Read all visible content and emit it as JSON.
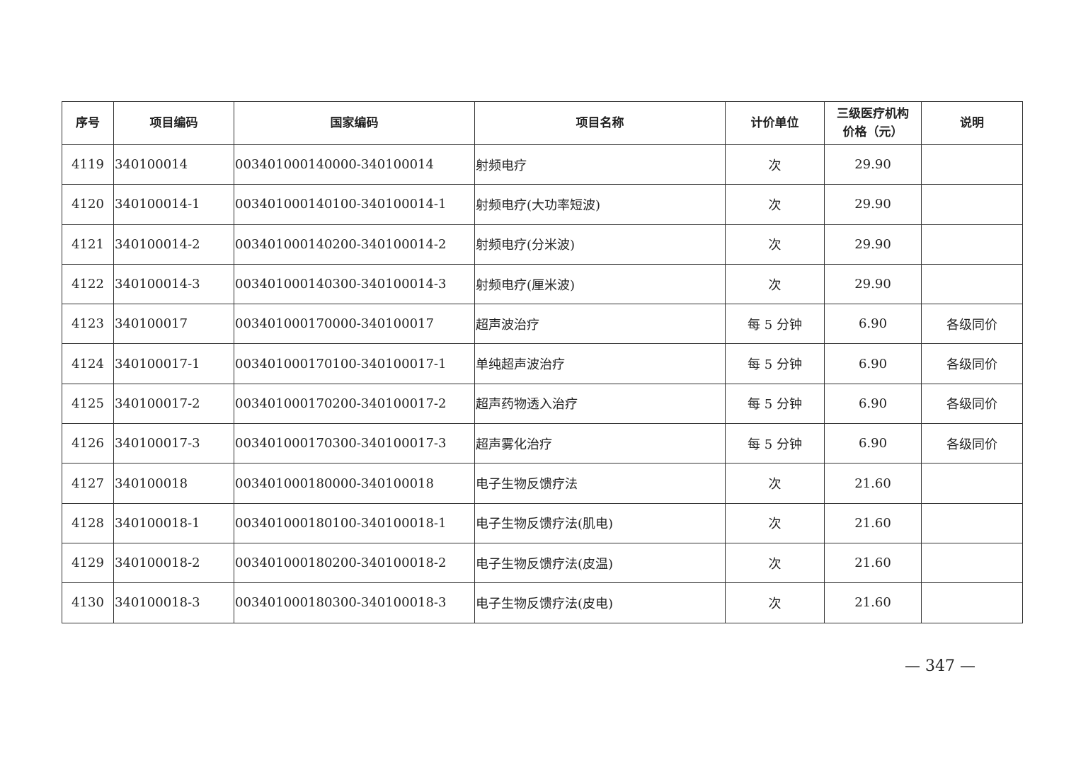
{
  "table": {
    "headers": [
      "序号",
      "项目编码",
      "国家编码",
      "项目名称",
      "计价单位",
      "三级医疗机构价格（元）",
      "说明"
    ],
    "header_price_line1": "三级医疗机构",
    "header_price_line2": "价格（元）",
    "rows": [
      [
        "4119",
        "340100014",
        "003401000140000-340100014",
        "射频电疗",
        "次",
        "29.90",
        ""
      ],
      [
        "4120",
        "340100014-1",
        "003401000140100-340100014-1",
        "射频电疗(大功率短波)",
        "次",
        "29.90",
        ""
      ],
      [
        "4121",
        "340100014-2",
        "003401000140200-340100014-2",
        "射频电疗(分米波)",
        "次",
        "29.90",
        ""
      ],
      [
        "4122",
        "340100014-3",
        "003401000140300-340100014-3",
        "射频电疗(厘米波)",
        "次",
        "29.90",
        ""
      ],
      [
        "4123",
        "340100017",
        "003401000170000-340100017",
        "超声波治疗",
        "每 5 分钟",
        "6.90",
        "各级同价"
      ],
      [
        "4124",
        "340100017-1",
        "003401000170100-340100017-1",
        "单纯超声波治疗",
        "每 5 分钟",
        "6.90",
        "各级同价"
      ],
      [
        "4125",
        "340100017-2",
        "003401000170200-340100017-2",
        "超声药物透入治疗",
        "每 5 分钟",
        "6.90",
        "各级同价"
      ],
      [
        "4126",
        "340100017-3",
        "003401000170300-340100017-3",
        "超声雾化治疗",
        "每 5 分钟",
        "6.90",
        "各级同价"
      ],
      [
        "4127",
        "340100018",
        "003401000180000-340100018",
        "电子生物反馈疗法",
        "次",
        "21.60",
        ""
      ],
      [
        "4128",
        "340100018-1",
        "003401000180100-340100018-1",
        "电子生物反馈疗法(肌电)",
        "次",
        "21.60",
        ""
      ],
      [
        "4129",
        "340100018-2",
        "003401000180200-340100018-2",
        "电子生物反馈疗法(皮温)",
        "次",
        "21.60",
        ""
      ],
      [
        "4130",
        "340100018-3",
        "003401000180300-340100018-3",
        "电子生物反馈疗法(皮电)",
        "次",
        "21.60",
        ""
      ]
    ]
  },
  "page_number": "— 347 —"
}
